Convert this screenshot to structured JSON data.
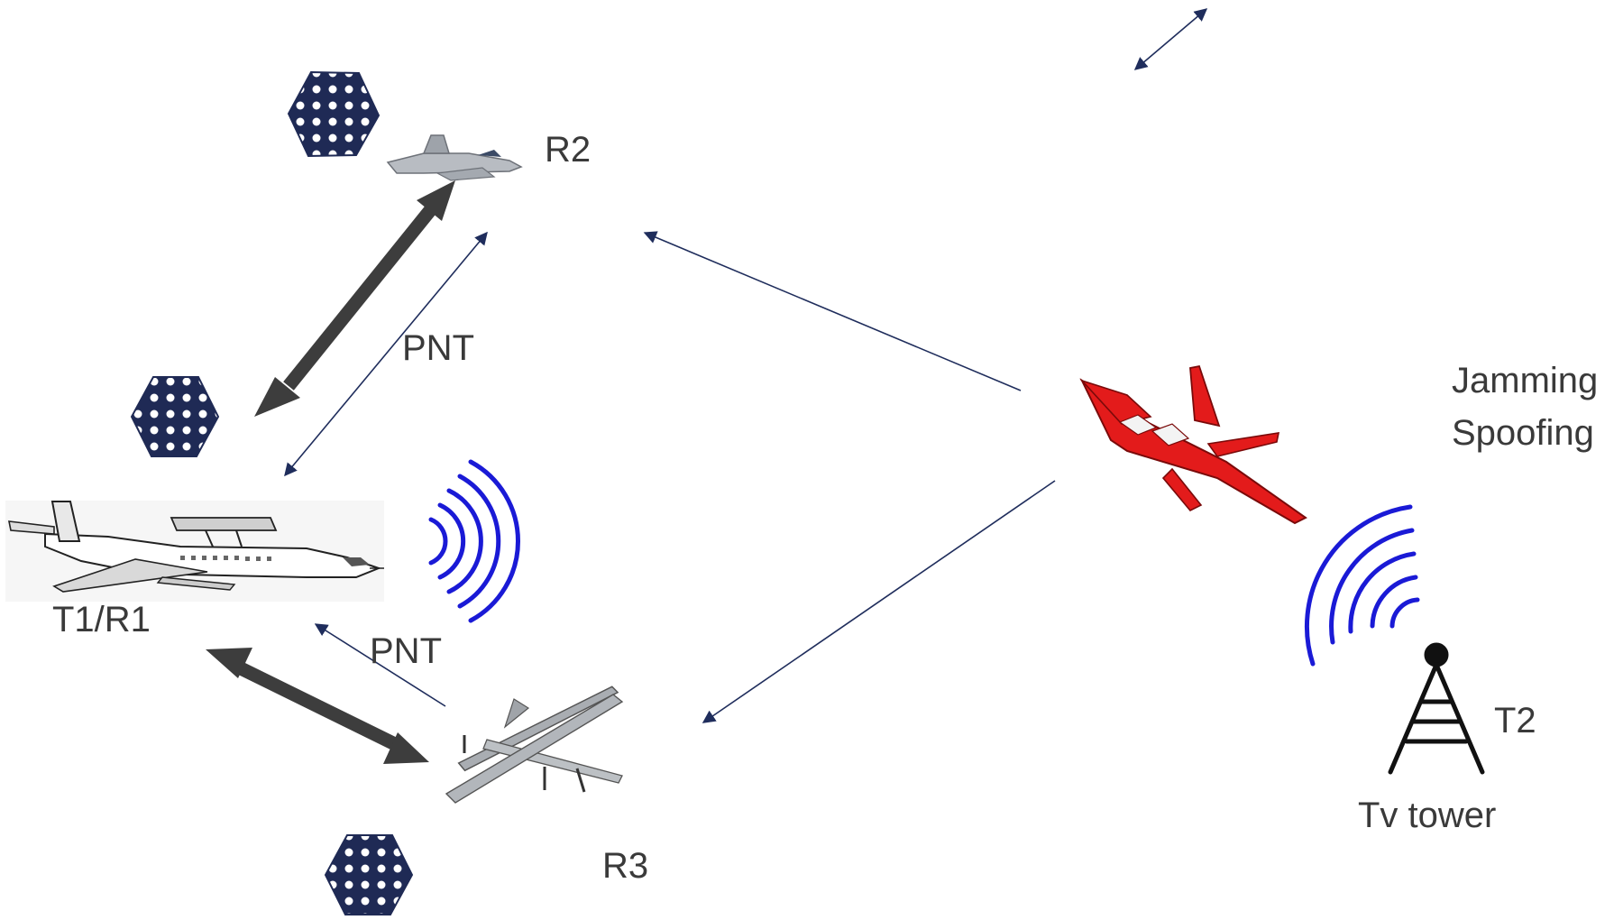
{
  "labels": {
    "r2": "R2",
    "r3": "R3",
    "t1r1": "T1/R1",
    "t2": "T2",
    "tv_tower": "Tv tower",
    "pnt_upper": "PNT",
    "pnt_lower": "PNT",
    "jamming": "Jamming",
    "spoofing": "Spoofing"
  },
  "nodes": [
    {
      "id": "r2",
      "icon": "fighter-jet-icon"
    },
    {
      "id": "t1r1",
      "icon": "awacs-aircraft-icon"
    },
    {
      "id": "r3",
      "icon": "drone-uav-icon"
    },
    {
      "id": "jammer",
      "icon": "red-jammer-jet-icon"
    },
    {
      "id": "t2",
      "icon": "tv-tower-icon"
    }
  ],
  "colors": {
    "thick_arrow": "#3d3d3d",
    "thin_arrow": "#1f2d5c",
    "signal_waves": "#1a1ad6",
    "jammer_red": "#e31b1b",
    "satellite_fill": "#1f2a55",
    "label_text": "#3a3a3a"
  }
}
